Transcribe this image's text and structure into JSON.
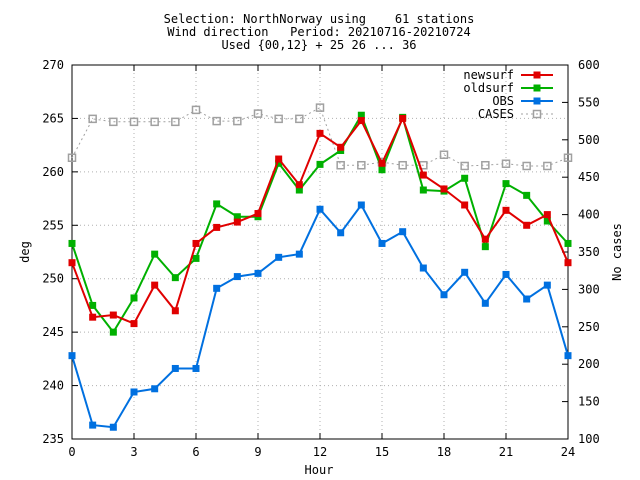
{
  "chart_data": {
    "type": "line",
    "title_lines": [
      "Selection: NorthNorway using    61 stations",
      "Wind direction   Period: 20210716-20210724",
      "Used {00,12} + 25 26 ... 36"
    ],
    "xlabel": "Hour",
    "ylabel": "deg",
    "y2label": "No cases",
    "xlim": [
      0,
      24
    ],
    "ylim": [
      235,
      270
    ],
    "y2lim": [
      100,
      600
    ],
    "xticks": [
      "0",
      "3",
      "6",
      "9",
      "12",
      "15",
      "18",
      "21",
      "24"
    ],
    "yticks": [
      "235",
      "240",
      "245",
      "250",
      "255",
      "260",
      "265",
      "270"
    ],
    "y2ticks": [
      "100",
      "150",
      "200",
      "250",
      "300",
      "350",
      "400",
      "450",
      "500",
      "550",
      "600"
    ],
    "grid": true,
    "legend_position": "top-right",
    "x": [
      0,
      1,
      2,
      3,
      4,
      5,
      6,
      7,
      8,
      9,
      10,
      11,
      12,
      13,
      14,
      15,
      16,
      17,
      18,
      19,
      20,
      21,
      22,
      23,
      24
    ],
    "series": [
      {
        "name": "newsurf",
        "color": "#e00000",
        "axis": "left",
        "marker": "filled-square",
        "values": [
          251.5,
          246.4,
          246.6,
          245.8,
          249.4,
          247.0,
          253.3,
          254.8,
          255.3,
          256.1,
          261.2,
          258.8,
          263.6,
          262.3,
          264.8,
          260.8,
          265.0,
          259.7,
          258.4,
          256.9,
          253.7,
          256.4,
          255.0,
          256.0,
          251.5
        ]
      },
      {
        "name": "oldsurf",
        "color": "#00b000",
        "axis": "left",
        "marker": "filled-square",
        "values": [
          253.3,
          247.5,
          245.0,
          248.2,
          252.3,
          250.1,
          251.9,
          257.0,
          255.8,
          255.8,
          260.8,
          258.3,
          260.7,
          262.0,
          265.3,
          260.2,
          265.1,
          258.3,
          258.2,
          259.4,
          253.0,
          258.9,
          257.8,
          255.4,
          253.3
        ]
      },
      {
        "name": "OBS",
        "color": "#0070e0",
        "axis": "left",
        "marker": "filled-square",
        "values": [
          242.8,
          236.3,
          236.1,
          239.4,
          239.7,
          241.6,
          241.6,
          249.1,
          250.2,
          250.5,
          252.0,
          252.3,
          256.5,
          254.3,
          256.9,
          253.3,
          254.4,
          251.0,
          248.5,
          250.6,
          247.7,
          250.4,
          248.1,
          249.4,
          242.8
        ]
      },
      {
        "name": "CASES",
        "color": "#a0a0a0",
        "axis": "right",
        "marker": "open-square",
        "dashed": true,
        "values": [
          476,
          528,
          524,
          524,
          524,
          524,
          540,
          525,
          525,
          535,
          528,
          528,
          543,
          466,
          466,
          470,
          466,
          466,
          480,
          465,
          466,
          468,
          465,
          465,
          476
        ]
      }
    ]
  }
}
